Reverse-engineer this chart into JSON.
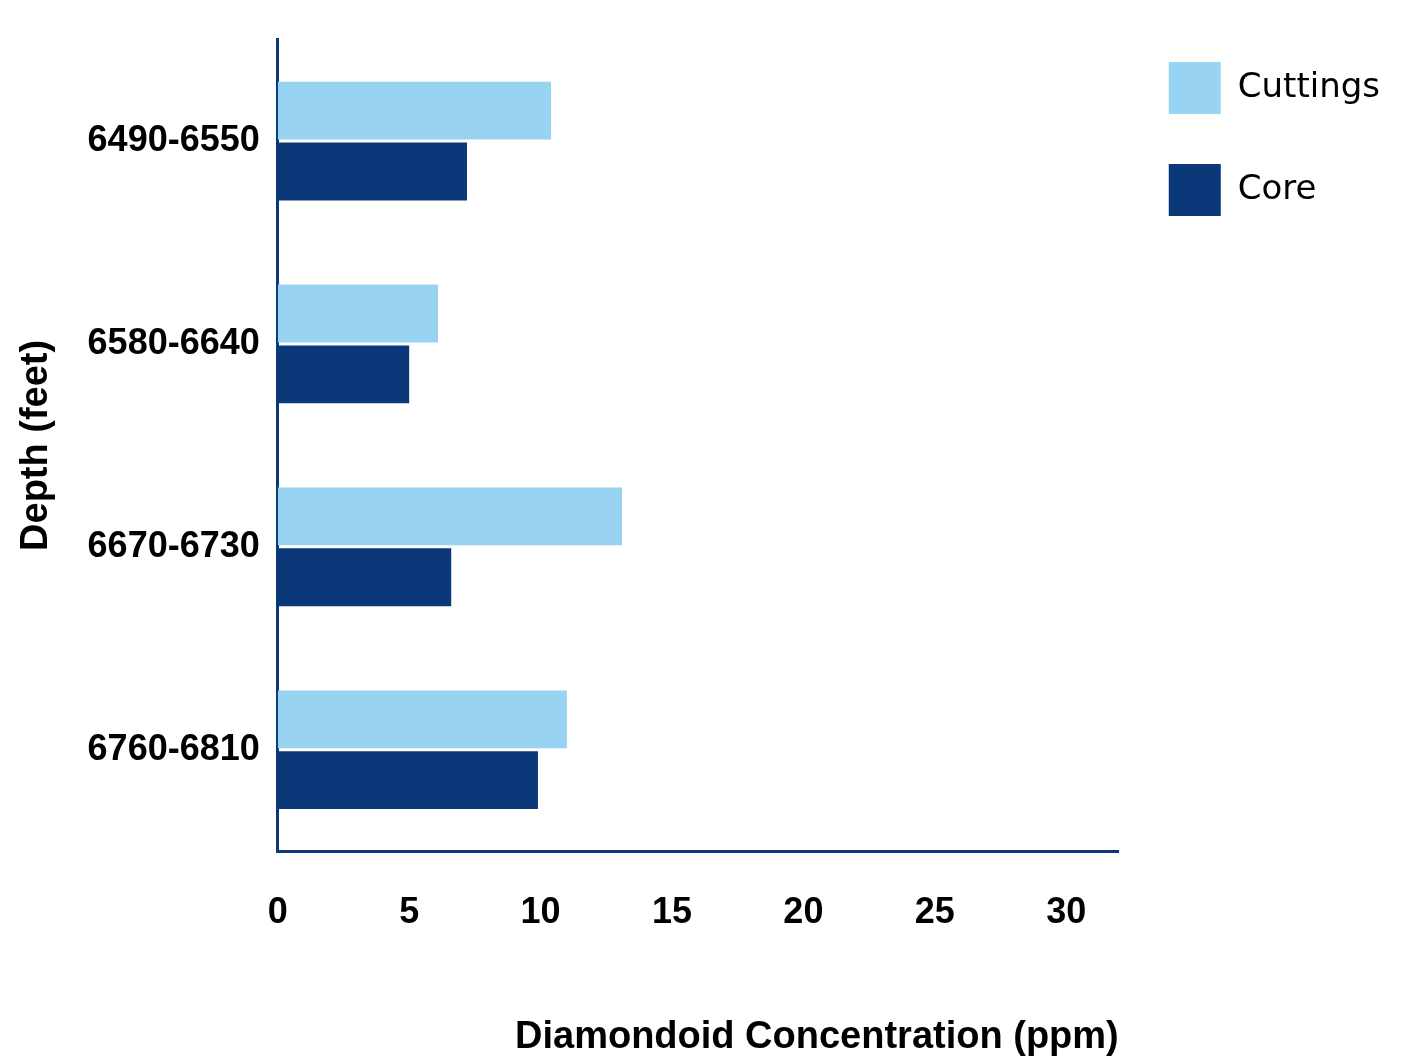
{
  "chart_data": {
    "type": "bar",
    "orientation": "horizontal",
    "xlabel": "Diamondoid Concentration (ppm)",
    "ylabel": "Depth (feet)",
    "categories": [
      "6490-6550",
      "6580-6640",
      "6670-6730",
      "6760-6810"
    ],
    "series": [
      {
        "name": "Cuttings",
        "color": "#99d3f2",
        "values": [
          10.4,
          6.1,
          13.1,
          11.0
        ]
      },
      {
        "name": "Core",
        "color": "#0a3878",
        "values": [
          7.2,
          5.0,
          6.6,
          9.9
        ]
      }
    ],
    "xlim": [
      0,
      32
    ],
    "xticks": [
      0,
      5,
      10,
      15,
      20,
      25,
      30
    ],
    "grid": false,
    "legend": "top right"
  }
}
